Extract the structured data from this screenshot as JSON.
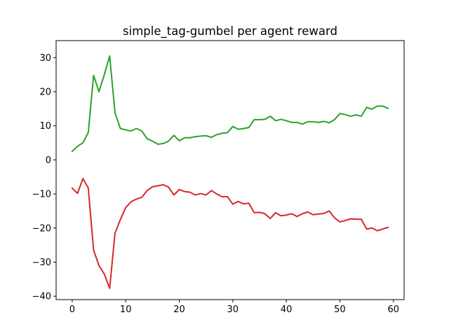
{
  "chart_data": {
    "type": "line",
    "title": "simple_tag-gumbel per agent reward",
    "xlabel": "",
    "ylabel": "",
    "xlim": [
      -3,
      62
    ],
    "ylim": [
      -41,
      35
    ],
    "xticks": [
      0,
      10,
      20,
      30,
      40,
      50,
      60
    ],
    "yticks": [
      -40,
      -30,
      -20,
      -10,
      0,
      10,
      20,
      30
    ],
    "grid": false,
    "legend": "none",
    "x": [
      0,
      1,
      2,
      3,
      4,
      5,
      6,
      7,
      8,
      9,
      10,
      11,
      12,
      13,
      14,
      15,
      16,
      17,
      18,
      19,
      20,
      21,
      22,
      23,
      24,
      25,
      26,
      27,
      28,
      29,
      30,
      31,
      32,
      33,
      34,
      35,
      36,
      37,
      38,
      39,
      40,
      41,
      42,
      43,
      44,
      45,
      46,
      47,
      48,
      49,
      50,
      51,
      52,
      53,
      54,
      55,
      56,
      57,
      58,
      59
    ],
    "series": [
      {
        "color": "#d62728",
        "values": [
          -8.3,
          -9.8,
          -5.5,
          -8.2,
          -26.5,
          -31.0,
          -33.5,
          -37.7,
          -21.5,
          -17.5,
          -14.0,
          -12.3,
          -11.5,
          -11.0,
          -9.0,
          -7.9,
          -7.6,
          -7.3,
          -8.0,
          -10.3,
          -8.7,
          -9.3,
          -9.5,
          -10.3,
          -9.9,
          -10.3,
          -9.0,
          -10.0,
          -10.8,
          -10.8,
          -13.0,
          -12.2,
          -12.9,
          -12.7,
          -15.5,
          -15.4,
          -15.8,
          -17.2,
          -15.5,
          -16.4,
          -16.2,
          -15.8,
          -16.6,
          -15.8,
          -15.3,
          -16.1,
          -15.9,
          -15.7,
          -15.0,
          -17.0,
          -18.2,
          -17.8,
          -17.3,
          -17.4,
          -17.4,
          -20.3,
          -20.0,
          -20.8,
          -20.3,
          -19.8
        ]
      },
      {
        "color": "#2ca02c",
        "values": [
          2.5,
          4.0,
          5.0,
          8.0,
          24.8,
          20.0,
          25.0,
          30.5,
          13.8,
          9.2,
          8.8,
          8.5,
          9.2,
          8.5,
          6.2,
          5.5,
          4.6,
          4.8,
          5.5,
          7.2,
          5.6,
          6.5,
          6.5,
          6.8,
          7.0,
          7.1,
          6.6,
          7.4,
          7.8,
          8.0,
          9.8,
          9.0,
          9.2,
          9.5,
          11.8,
          11.8,
          11.9,
          12.8,
          11.5,
          11.9,
          11.5,
          11.0,
          11.0,
          10.5,
          11.2,
          11.2,
          11.0,
          11.3,
          10.9,
          11.8,
          13.6,
          13.3,
          12.8,
          13.2,
          12.8,
          15.4,
          14.9,
          15.8,
          15.8,
          15.1
        ]
      }
    ]
  }
}
